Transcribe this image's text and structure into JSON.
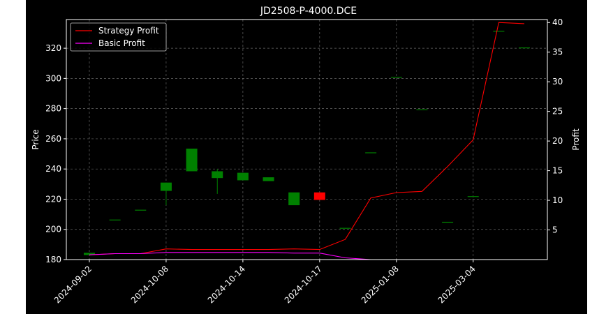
{
  "chart_data": {
    "type": "candlestick",
    "title": "JD2508-P-4000.DCE",
    "ylabel_left": "Price",
    "ylabel_right": "Profit",
    "ylim_left": [
      180,
      339
    ],
    "ylim_right": [
      0,
      40.5
    ],
    "left_ticks": [
      180,
      200,
      220,
      240,
      260,
      280,
      300,
      320
    ],
    "right_ticks": [
      5,
      10,
      15,
      20,
      25,
      30,
      35,
      40
    ],
    "x_tick_labels": [
      "2024-09-02",
      "2024-10-08",
      "2024-10-14",
      "2024-10-17",
      "2025-01-08",
      "2025-03-04"
    ],
    "x_tick_positions": [
      0,
      3,
      6,
      9,
      12,
      15
    ],
    "grid": true,
    "legend_position": "top-left",
    "colors": {
      "up": "#008000",
      "down": "#ff0000",
      "strategy": "#ff0000",
      "basic": "#ff00ff",
      "background": "#000000",
      "text": "#ffffff"
    },
    "candles": [
      {
        "i": 0,
        "open": 183.0,
        "close": 184.5,
        "high": 184.5,
        "low": 183.0
      },
      {
        "i": 1,
        "open": 206.5,
        "close": 206.5,
        "high": 206.5,
        "low": 206.5
      },
      {
        "i": 2,
        "open": 213.0,
        "close": 213.0,
        "high": 213.0,
        "low": 213.0
      },
      {
        "i": 3,
        "open": 225.5,
        "close": 231.0,
        "high": 231.0,
        "low": 216.0
      },
      {
        "i": 4,
        "open": 238.5,
        "close": 253.5,
        "high": 253.5,
        "low": 238.5
      },
      {
        "i": 5,
        "open": 234.0,
        "close": 238.5,
        "high": 240.0,
        "low": 223.5
      },
      {
        "i": 6,
        "open": 232.5,
        "close": 237.5,
        "high": 237.5,
        "low": 232.5
      },
      {
        "i": 7,
        "open": 232.0,
        "close": 234.5,
        "high": 234.5,
        "low": 232.0
      },
      {
        "i": 8,
        "open": 216.0,
        "close": 224.5,
        "high": 224.5,
        "low": 216.0
      },
      {
        "i": 9,
        "open": 224.5,
        "close": 219.5,
        "high": 224.5,
        "low": 219.5
      },
      {
        "i": 10,
        "open": 201.0,
        "close": 201.0,
        "high": 201.0,
        "low": 201.0
      },
      {
        "i": 11,
        "open": 251.0,
        "close": 251.0,
        "high": 251.0,
        "low": 251.0
      },
      {
        "i": 12,
        "open": 301.0,
        "close": 301.0,
        "high": 301.0,
        "low": 301.0
      },
      {
        "i": 13,
        "open": 279.5,
        "close": 279.5,
        "high": 279.5,
        "low": 279.5
      },
      {
        "i": 14,
        "open": 205.0,
        "close": 205.0,
        "high": 205.0,
        "low": 205.0
      },
      {
        "i": 15,
        "open": 222.0,
        "close": 222.0,
        "high": 222.0,
        "low": 222.0
      },
      {
        "i": 16,
        "open": 331.5,
        "close": 331.5,
        "high": 331.5,
        "low": 331.5
      },
      {
        "i": 17,
        "open": 320.5,
        "close": 320.5,
        "high": 320.5,
        "low": 320.5
      }
    ],
    "series": [
      {
        "name": "Strategy Profit",
        "color": "#ff0000",
        "values": [
          0.8,
          1.0,
          1.0,
          1.8,
          1.7,
          1.7,
          1.7,
          1.7,
          1.8,
          1.7,
          3.4,
          10.4,
          11.3,
          11.5,
          15.7,
          20.2,
          40.0,
          39.8
        ]
      },
      {
        "name": "Basic Profit",
        "color": "#ff00ff",
        "values": [
          0.8,
          1.0,
          1.0,
          1.2,
          1.2,
          1.2,
          1.2,
          1.2,
          1.1,
          1.1,
          0.3,
          0.0,
          0.0,
          0.0,
          0.0,
          0.0,
          0.0,
          0.0
        ]
      }
    ]
  }
}
